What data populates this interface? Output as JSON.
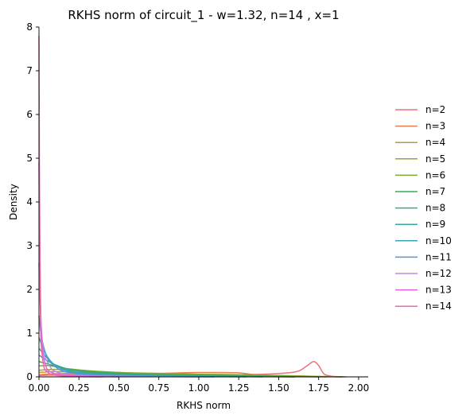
{
  "chart_data": {
    "type": "line",
    "title": "RKHS norm of circuit_1 - w=1.32, n=14 , x=1",
    "xlabel": "RKHS norm",
    "ylabel": "Density",
    "xlim": [
      0,
      2.06
    ],
    "ylim": [
      0,
      8
    ],
    "xticks": [
      "0.00",
      "0.25",
      "0.50",
      "0.75",
      "1.00",
      "1.25",
      "1.50",
      "1.75",
      "2.00"
    ],
    "yticks": [
      "0",
      "1",
      "2",
      "3",
      "4",
      "5",
      "6",
      "7",
      "8"
    ],
    "grid": false,
    "legend": {
      "placement": "right",
      "entries": [
        "n=2",
        "n=3",
        "n=4",
        "n=5",
        "n=6",
        "n=7",
        "n=8",
        "n=9",
        "n=10",
        "n=11",
        "n=12",
        "n=13",
        "n=14"
      ]
    },
    "series": [
      {
        "name": "n=2",
        "color": "#e8747c",
        "points": [
          [
            0,
            0.03
          ],
          [
            0.25,
            0.05
          ],
          [
            0.5,
            0.05
          ],
          [
            0.75,
            0.05
          ],
          [
            1.0,
            0.05
          ],
          [
            1.25,
            0.05
          ],
          [
            1.4,
            0.06
          ],
          [
            1.55,
            0.09
          ],
          [
            1.63,
            0.14
          ],
          [
            1.68,
            0.26
          ],
          [
            1.72,
            0.35
          ],
          [
            1.75,
            0.26
          ],
          [
            1.78,
            0.08
          ],
          [
            1.82,
            0.02
          ],
          [
            1.9,
            0.0
          ]
        ]
      },
      {
        "name": "n=3",
        "color": "#e4804c",
        "points": [
          [
            0,
            0.05
          ],
          [
            0.1,
            0.07
          ],
          [
            0.25,
            0.08
          ],
          [
            0.5,
            0.08
          ],
          [
            0.75,
            0.08
          ],
          [
            1.0,
            0.1
          ],
          [
            1.1,
            0.1
          ],
          [
            1.25,
            0.09
          ],
          [
            1.35,
            0.05
          ],
          [
            1.5,
            0.01
          ],
          [
            1.6,
            0.0
          ]
        ]
      },
      {
        "name": "n=4",
        "color": "#c59632",
        "points": [
          [
            0,
            0.1
          ],
          [
            0.1,
            0.12
          ],
          [
            0.25,
            0.1
          ],
          [
            0.5,
            0.08
          ],
          [
            0.75,
            0.07
          ],
          [
            1.0,
            0.06
          ],
          [
            1.25,
            0.05
          ],
          [
            1.5,
            0.03
          ],
          [
            1.75,
            0.01
          ],
          [
            1.92,
            0.0
          ]
        ]
      },
      {
        "name": "n=5",
        "color": "#a5a132",
        "points": [
          [
            0,
            0.15
          ],
          [
            0.1,
            0.17
          ],
          [
            0.25,
            0.14
          ],
          [
            0.5,
            0.1
          ],
          [
            0.75,
            0.08
          ],
          [
            1.0,
            0.06
          ],
          [
            1.25,
            0.05
          ],
          [
            1.5,
            0.03
          ],
          [
            1.75,
            0.01
          ],
          [
            1.9,
            0.0
          ]
        ]
      },
      {
        "name": "n=6",
        "color": "#7ba833",
        "points": [
          [
            0,
            0.25
          ],
          [
            0.05,
            0.26
          ],
          [
            0.15,
            0.2
          ],
          [
            0.25,
            0.16
          ],
          [
            0.5,
            0.1
          ],
          [
            0.75,
            0.07
          ],
          [
            1.0,
            0.05
          ],
          [
            1.25,
            0.04
          ],
          [
            1.5,
            0.02
          ],
          [
            1.8,
            0.0
          ]
        ]
      },
      {
        "name": "n=7",
        "color": "#35ad58",
        "points": [
          [
            0,
            0.35
          ],
          [
            0.05,
            0.3
          ],
          [
            0.15,
            0.2
          ],
          [
            0.25,
            0.14
          ],
          [
            0.5,
            0.08
          ],
          [
            0.75,
            0.05
          ],
          [
            1.0,
            0.03
          ],
          [
            1.25,
            0.02
          ],
          [
            1.5,
            0.01
          ],
          [
            1.75,
            0.0
          ]
        ]
      },
      {
        "name": "n=8",
        "color": "#35ab8a",
        "points": [
          [
            0,
            0.5
          ],
          [
            0.03,
            0.42
          ],
          [
            0.1,
            0.28
          ],
          [
            0.2,
            0.16
          ],
          [
            0.35,
            0.09
          ],
          [
            0.5,
            0.06
          ],
          [
            0.75,
            0.04
          ],
          [
            1.0,
            0.02
          ],
          [
            1.3,
            0.01
          ],
          [
            1.6,
            0.0
          ]
        ]
      },
      {
        "name": "n=9",
        "color": "#36a99f",
        "points": [
          [
            0,
            0.65
          ],
          [
            0.03,
            0.52
          ],
          [
            0.08,
            0.32
          ],
          [
            0.15,
            0.18
          ],
          [
            0.3,
            0.08
          ],
          [
            0.5,
            0.05
          ],
          [
            0.75,
            0.03
          ],
          [
            1.0,
            0.02
          ],
          [
            1.4,
            0.0
          ]
        ]
      },
      {
        "name": "n=10",
        "color": "#38a7b3",
        "points": [
          [
            0,
            0.9
          ],
          [
            0.02,
            0.7
          ],
          [
            0.06,
            0.42
          ],
          [
            0.12,
            0.22
          ],
          [
            0.25,
            0.09
          ],
          [
            0.5,
            0.04
          ],
          [
            0.75,
            0.02
          ],
          [
            1.0,
            0.01
          ],
          [
            1.3,
            0.0
          ]
        ]
      },
      {
        "name": "n=11",
        "color": "#5495e3",
        "points": [
          [
            0,
            1.4
          ],
          [
            0.01,
            1.05
          ],
          [
            0.04,
            0.55
          ],
          [
            0.1,
            0.24
          ],
          [
            0.2,
            0.09
          ],
          [
            0.4,
            0.04
          ],
          [
            0.75,
            0.01
          ],
          [
            1.1,
            0.0
          ]
        ]
      },
      {
        "name": "n=12",
        "color": "#b18ae6",
        "points": [
          [
            0,
            2.6
          ],
          [
            0.005,
            1.9
          ],
          [
            0.02,
            0.85
          ],
          [
            0.06,
            0.3
          ],
          [
            0.12,
            0.1
          ],
          [
            0.3,
            0.03
          ],
          [
            0.6,
            0.01
          ],
          [
            1.0,
            0.0
          ]
        ]
      },
      {
        "name": "n=13",
        "color": "#e062dc",
        "points": [
          [
            0,
            4.9
          ],
          [
            0.004,
            3.2
          ],
          [
            0.012,
            1.3
          ],
          [
            0.035,
            0.35
          ],
          [
            0.08,
            0.1
          ],
          [
            0.2,
            0.03
          ],
          [
            0.5,
            0.0
          ]
        ]
      },
      {
        "name": "n=14",
        "color": "#f066aa",
        "points": [
          [
            0,
            7.8
          ],
          [
            0.003,
            4.6
          ],
          [
            0.008,
            1.8
          ],
          [
            0.02,
            0.5
          ],
          [
            0.05,
            0.12
          ],
          [
            0.12,
            0.03
          ],
          [
            0.4,
            0.0
          ]
        ]
      }
    ]
  }
}
